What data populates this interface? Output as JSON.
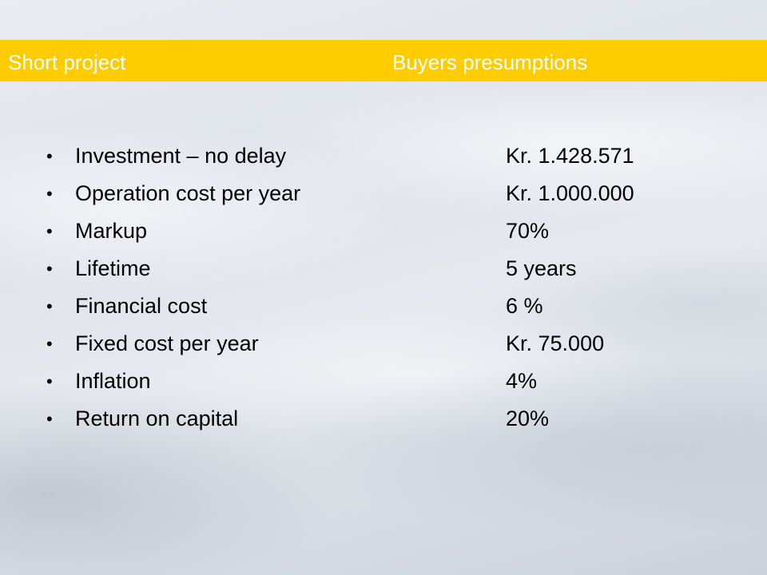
{
  "header": {
    "left_title": "Short project",
    "right_title": "Buyers presumptions"
  },
  "items": [
    {
      "label": "Investment – no delay",
      "value": "Kr. 1.428.571"
    },
    {
      "label": "Operation cost per year",
      "value": "Kr. 1.000.000"
    },
    {
      "label": "Markup",
      "value": "70%"
    },
    {
      "label": "Lifetime",
      "value": "5 years"
    },
    {
      "label": "Financial cost",
      "value": "6 %"
    },
    {
      "label": "Fixed cost per year",
      "value": "Kr. 75.000"
    },
    {
      "label": "Inflation",
      "value": "4%"
    },
    {
      "label": "Return on capital",
      "value": "20%"
    }
  ],
  "colors": {
    "title_bar": "#ffcc00",
    "title_text": "#ffffff",
    "body_text": "#000000"
  }
}
